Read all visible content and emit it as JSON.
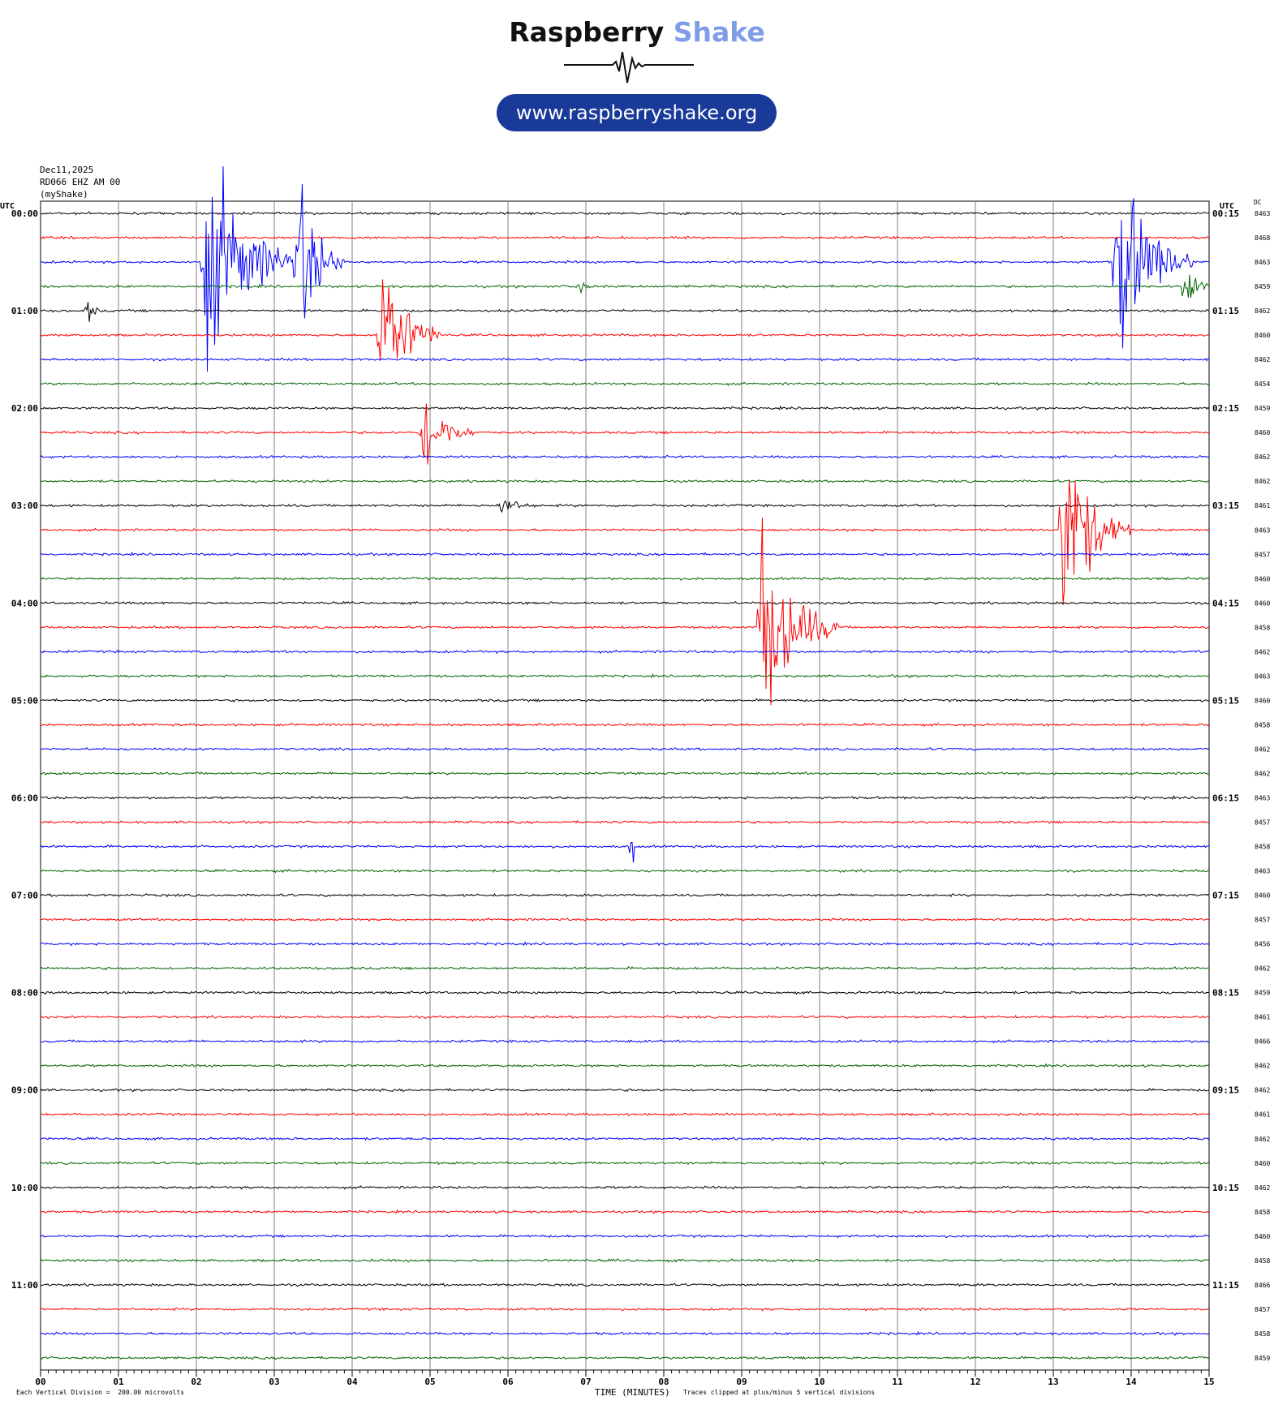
{
  "header": {
    "brand_part1": "Raspberry",
    "brand_part2": "Shake",
    "url": "www.raspberryshake.org",
    "brand_color": "#7f9de6",
    "pill_color": "#1a3a9a"
  },
  "meta": {
    "date": "Dec11,2025",
    "station": "RD066 EHZ AM 00",
    "source": "(myShake)"
  },
  "footer": {
    "division_note": "Each Vertical Division =  200.00 microvolts",
    "axis_title": "TIME (MINUTES)",
    "clip_note": "Traces clipped at plus/minus 5 vertical divisions"
  },
  "chart_data": {
    "type": "line",
    "title": "",
    "xlabel": "TIME (MINUTES)",
    "ylabel": "",
    "xlim": [
      0,
      15
    ],
    "x_ticks": [
      "00",
      "01",
      "02",
      "03",
      "04",
      "05",
      "06",
      "07",
      "08",
      "09",
      "10",
      "11",
      "12",
      "13",
      "14",
      "15"
    ],
    "left_axis_title": "UTC",
    "right_axis_title": "UTC",
    "dc_title": "DC",
    "left_time_labels": [
      "00:00",
      "01:00",
      "02:00",
      "03:00",
      "04:00",
      "05:00",
      "06:00",
      "07:00",
      "08:00",
      "09:00",
      "10:00",
      "11:00"
    ],
    "right_time_labels": [
      "00:15",
      "01:15",
      "02:15",
      "03:15",
      "04:15",
      "05:15",
      "06:15",
      "07:15",
      "08:15",
      "09:15",
      "10:15",
      "11:15"
    ],
    "trace_count": 48,
    "trace_minutes": 15,
    "trace_colors": [
      "#000000",
      "#ff0000",
      "#0000ff",
      "#006400"
    ],
    "dc_offsets": [
      8463,
      8468,
      8463,
      8459,
      8462,
      8460,
      8462,
      8454,
      8459,
      8460,
      8462,
      8462,
      8461,
      8463,
      8457,
      8460,
      8460,
      8458,
      8462,
      8463,
      8460,
      8458,
      8462,
      8462,
      8463,
      8457,
      8458,
      8463,
      8460,
      8457,
      8456,
      8462,
      8459,
      8461,
      8466,
      8462,
      8462,
      8461,
      8462,
      8460,
      8462,
      8458,
      8460,
      8458,
      8466,
      8457,
      8458,
      8459
    ],
    "grid": true,
    "legend": "none",
    "events": [
      {
        "trace": 2,
        "minute": 2.1,
        "amplitude": 5.0,
        "duration": 1.3
      },
      {
        "trace": 2,
        "minute": 3.3,
        "amplitude": 4.2,
        "duration": 0.6
      },
      {
        "trace": 5,
        "minute": 4.35,
        "amplitude": 4.0,
        "duration": 0.8
      },
      {
        "trace": 9,
        "minute": 4.9,
        "amplitude": 2.0,
        "duration": 0.7
      },
      {
        "trace": 12,
        "minute": 5.9,
        "amplitude": 0.5,
        "duration": 0.6
      },
      {
        "trace": 3,
        "minute": 6.9,
        "amplitude": 0.6,
        "duration": 0.2
      },
      {
        "trace": 4,
        "minute": 0.6,
        "amplitude": 0.7,
        "duration": 0.2
      },
      {
        "trace": 3,
        "minute": 14.7,
        "amplitude": 1.8,
        "duration": 0.3
      },
      {
        "trace": 2,
        "minute": 13.8,
        "amplitude": 5.0,
        "duration": 1.0
      },
      {
        "trace": 13,
        "minute": 13.1,
        "amplitude": 5.0,
        "duration": 0.9
      },
      {
        "trace": 17,
        "minute": 9.25,
        "amplitude": 5.0,
        "duration": 1.0
      },
      {
        "trace": 26,
        "minute": 7.6,
        "amplitude": 2.5,
        "duration": 0.02
      }
    ]
  }
}
